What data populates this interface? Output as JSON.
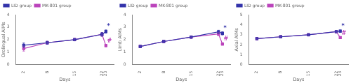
{
  "chart_data": [
    {
      "type": "line",
      "xlabel": "Days",
      "ylabel": "Orolingual AIMs",
      "x": [
        2,
        8,
        15,
        22,
        23
      ],
      "xlim": [
        0,
        25
      ],
      "xticks": [
        2,
        8,
        15,
        22,
        23
      ],
      "ylim": [
        0,
        4
      ],
      "yticks": [
        0,
        1,
        2,
        3,
        4
      ],
      "grid": false,
      "legend": "upper left",
      "marker": "square",
      "series": [
        {
          "name": "LID group",
          "color": "#3333aa",
          "values": [
            1.55,
            1.75,
            2.0,
            2.42,
            2.65
          ],
          "errors": [
            0.18,
            0.12,
            0.1,
            0.15,
            0.13
          ]
        },
        {
          "name": "MK-801 group",
          "color": "#bb44bb",
          "values": [
            1.28,
            1.75,
            2.0,
            2.42,
            1.52
          ],
          "errors": [
            0.2,
            0.12,
            0.1,
            0.15,
            0.1
          ]
        }
      ],
      "annotations": [
        {
          "text": "*",
          "x": 23.3,
          "y": 2.83,
          "color": "#3333aa"
        },
        {
          "text": "#",
          "x": 23.3,
          "y": 1.67,
          "color": "#bb44bb"
        }
      ]
    },
    {
      "type": "line",
      "xlabel": "Days",
      "ylabel": "Limb AIMs",
      "x": [
        2,
        8,
        15,
        22,
        23
      ],
      "xlim": [
        0,
        25
      ],
      "xticks": [
        2,
        8,
        15,
        22,
        23
      ],
      "ylim": [
        0,
        4
      ],
      "yticks": [
        0,
        1,
        2,
        3,
        4
      ],
      "grid": false,
      "legend": "upper left",
      "marker": "square",
      "series": [
        {
          "name": "LID group",
          "color": "#3333aa",
          "values": [
            1.45,
            1.85,
            2.2,
            2.62,
            2.5
          ],
          "errors": [
            0.1,
            0.1,
            0.1,
            0.13,
            0.13
          ]
        },
        {
          "name": "MK-801 group",
          "color": "#bb44bb",
          "values": [
            1.45,
            1.85,
            2.2,
            2.45,
            1.65
          ],
          "errors": [
            0.1,
            0.1,
            0.1,
            0.13,
            0.1
          ]
        }
      ],
      "annotations": [
        {
          "text": "*",
          "x": 23.3,
          "y": 2.68,
          "color": "#3333aa"
        },
        {
          "text": "#",
          "x": 23.3,
          "y": 1.8,
          "color": "#bb44bb"
        }
      ]
    },
    {
      "type": "line",
      "xlabel": "Days",
      "ylabel": "Axial AIMs",
      "x": [
        2,
        8,
        15,
        22,
        23
      ],
      "xlim": [
        0,
        25
      ],
      "xticks": [
        2,
        8,
        15,
        22,
        23
      ],
      "ylim": [
        0,
        5
      ],
      "yticks": [
        0,
        1,
        2,
        3,
        4,
        5
      ],
      "grid": false,
      "legend": "upper left",
      "marker": "square",
      "series": [
        {
          "name": "LID group",
          "color": "#3333aa",
          "values": [
            2.6,
            2.78,
            2.98,
            3.3,
            3.35
          ],
          "errors": [
            0.12,
            0.12,
            0.12,
            0.12,
            0.12
          ]
        },
        {
          "name": "MK-801 group",
          "color": "#bb44bb",
          "values": [
            2.6,
            2.78,
            2.98,
            3.3,
            2.7
          ],
          "errors": [
            0.12,
            0.12,
            0.12,
            0.12,
            0.1
          ]
        }
      ],
      "annotations": [
        {
          "text": "*",
          "x": 23.3,
          "y": 3.52,
          "color": "#3333aa"
        },
        {
          "text": "#",
          "x": 23.3,
          "y": 2.85,
          "color": "#bb44bb"
        }
      ]
    }
  ]
}
